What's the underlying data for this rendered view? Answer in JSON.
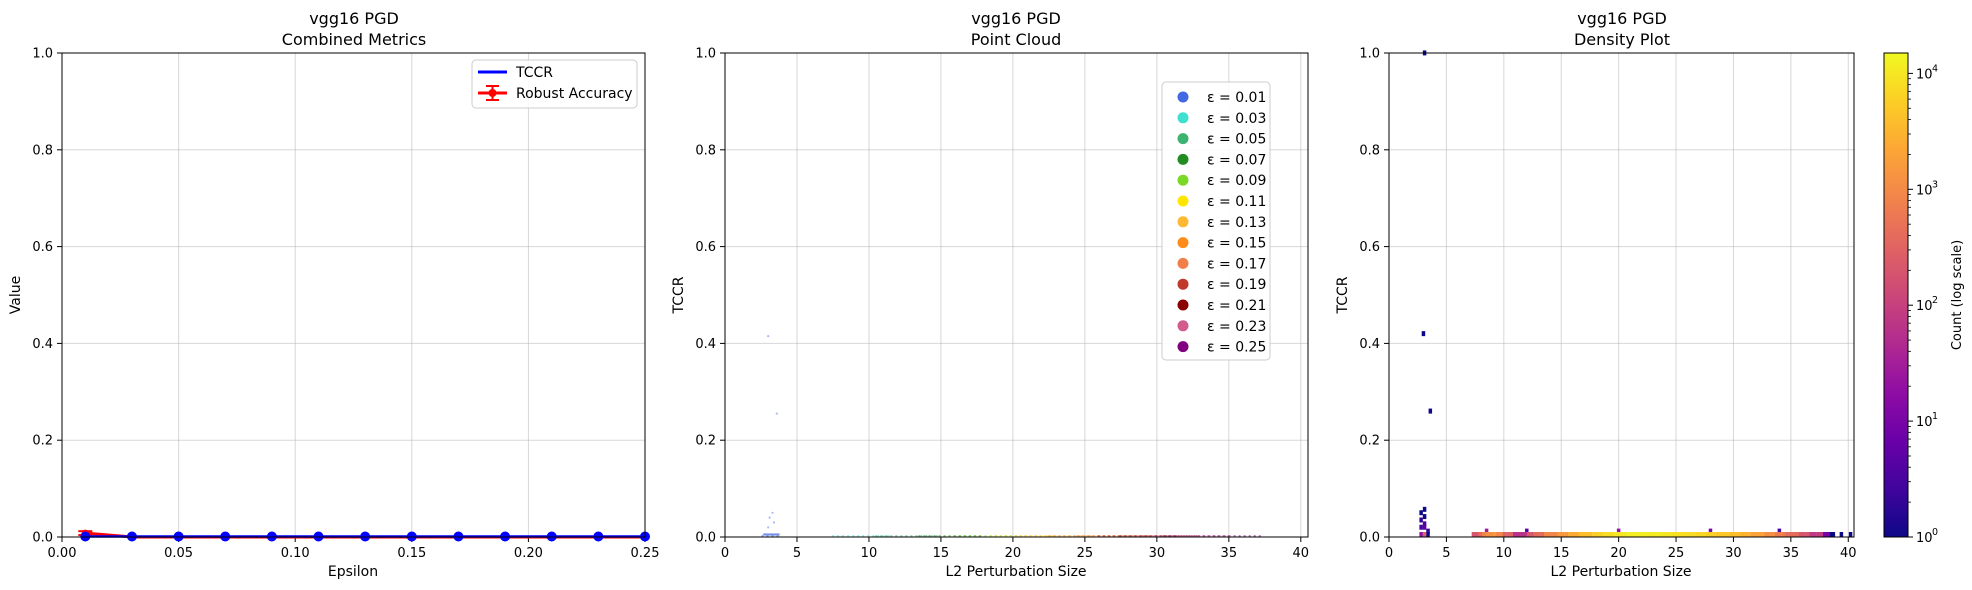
{
  "chart_data": [
    {
      "type": "line",
      "title": "vgg16 PGD",
      "subtitle": "Combined Metrics",
      "xlabel": "Epsilon",
      "ylabel": "Value",
      "xlim": [
        0.0,
        0.25
      ],
      "ylim": [
        0.0,
        1.0
      ],
      "x_ticks": [
        "0.00",
        "0.05",
        "0.10",
        "0.15",
        "0.20",
        "0.25"
      ],
      "y_ticks": [
        "0.0",
        "0.2",
        "0.4",
        "0.6",
        "0.8",
        "1.0"
      ],
      "grid": true,
      "legend_position": "top-right",
      "series": [
        {
          "name": "TCCR",
          "color": "#0000ff",
          "marker": "circle",
          "x": [
            0.01,
            0.03,
            0.05,
            0.07,
            0.09,
            0.11,
            0.13,
            0.15,
            0.17,
            0.19,
            0.21,
            0.23,
            0.25
          ],
          "y": [
            0.001,
            0.001,
            0.001,
            0.001,
            0.001,
            0.001,
            0.001,
            0.001,
            0.001,
            0.001,
            0.001,
            0.001,
            0.001
          ]
        },
        {
          "name": "Robust Accuracy",
          "color": "#ff0000",
          "marker": "diamond",
          "error_bars": true,
          "x": [
            0.01,
            0.03,
            0.05,
            0.07,
            0.09,
            0.11,
            0.13,
            0.15,
            0.17,
            0.19,
            0.21,
            0.23,
            0.25
          ],
          "y": [
            0.008,
            0.0,
            0.0,
            0.0,
            0.0,
            0.0,
            0.0,
            0.0,
            0.0,
            0.0,
            0.0,
            0.0,
            0.0
          ],
          "err": [
            0.004,
            0,
            0,
            0,
            0,
            0,
            0,
            0,
            0,
            0,
            0,
            0,
            0
          ]
        }
      ]
    },
    {
      "type": "scatter",
      "title": "vgg16 PGD",
      "subtitle": "Point Cloud",
      "xlabel": "L2 Perturbation Size",
      "ylabel": "TCCR",
      "xlim": [
        0,
        40.5
      ],
      "ylim": [
        0.0,
        1.0
      ],
      "x_ticks": [
        "0",
        "5",
        "10",
        "15",
        "20",
        "25",
        "30",
        "35",
        "40"
      ],
      "y_ticks": [
        "0.0",
        "0.2",
        "0.4",
        "0.6",
        "0.8",
        "1.0"
      ],
      "grid": true,
      "legend_position": "top-right",
      "series": [
        {
          "name": "ε = 0.01",
          "color": "#4169e1",
          "x_range": [
            2.6,
            3.8
          ],
          "outliers": [
            [
              3.0,
              0.415
            ],
            [
              3.6,
              0.255
            ],
            [
              3.3,
              0.05
            ],
            [
              3.1,
              0.04
            ],
            [
              3.4,
              0.03
            ],
            [
              3.0,
              0.02
            ]
          ]
        },
        {
          "name": "ε = 0.03",
          "color": "#40e0d0",
          "x_range": [
            7.5,
            11.5
          ]
        },
        {
          "name": "ε = 0.05",
          "color": "#3cb371",
          "x_range": [
            10.5,
            15.0
          ]
        },
        {
          "name": "ε = 0.07",
          "color": "#228b22",
          "x_range": [
            13.5,
            18.0
          ]
        },
        {
          "name": "ε = 0.09",
          "color": "#7cd827",
          "x_range": [
            16.0,
            20.5
          ]
        },
        {
          "name": "ε = 0.11",
          "color": "#ffe600",
          "x_range": [
            18.5,
            23.0
          ]
        },
        {
          "name": "ε = 0.13",
          "color": "#ffb833",
          "x_range": [
            20.5,
            25.5
          ]
        },
        {
          "name": "ε = 0.15",
          "color": "#ff8c1a",
          "x_range": [
            22.5,
            27.5
          ]
        },
        {
          "name": "ε = 0.17",
          "color": "#f08048",
          "x_range": [
            24.5,
            29.5
          ]
        },
        {
          "name": "ε = 0.19",
          "color": "#c0392b",
          "x_range": [
            26.0,
            31.5
          ]
        },
        {
          "name": "ε = 0.21",
          "color": "#8b0000",
          "x_range": [
            27.5,
            33.0
          ]
        },
        {
          "name": "ε = 0.23",
          "color": "#d05b8c",
          "x_range": [
            29.0,
            35.0
          ]
        },
        {
          "name": "ε = 0.25",
          "color": "#800080",
          "x_range": [
            30.5,
            37.5
          ]
        }
      ]
    },
    {
      "type": "heatmap",
      "title": "vgg16 PGD",
      "subtitle": "Density Plot",
      "xlabel": "L2 Perturbation Size",
      "ylabel": "TCCR",
      "xlim": [
        0,
        40.5
      ],
      "ylim": [
        0.0,
        1.0
      ],
      "x_ticks": [
        "0",
        "5",
        "10",
        "15",
        "20",
        "25",
        "30",
        "35",
        "40"
      ],
      "y_ticks": [
        "0.0",
        "0.2",
        "0.4",
        "0.6",
        "0.8",
        "1.0"
      ],
      "grid": true,
      "colormap": "plasma",
      "colorbar": {
        "label": "Count (log scale)",
        "scale": "log",
        "range": [
          1,
          15000
        ],
        "ticks": [
          {
            "base": "10",
            "exp": "0",
            "value": 1
          },
          {
            "base": "10",
            "exp": "1",
            "value": 10
          },
          {
            "base": "10",
            "exp": "2",
            "value": 100
          },
          {
            "base": "10",
            "exp": "3",
            "value": 1000
          },
          {
            "base": "10",
            "exp": "4",
            "value": 10000
          }
        ]
      },
      "cells": [
        [
          3.0,
          0.415,
          1
        ],
        [
          3.6,
          0.255,
          1
        ],
        [
          3.1,
          0.995,
          1
        ],
        [
          2.8,
          0.045,
          1
        ],
        [
          3.1,
          0.052,
          1
        ],
        [
          3.1,
          0.037,
          1
        ],
        [
          2.8,
          0.03,
          2
        ],
        [
          3.1,
          0.022,
          3
        ],
        [
          2.8,
          0.015,
          3
        ],
        [
          3.1,
          0.015,
          5
        ],
        [
          3.4,
          0.007,
          2
        ],
        [
          2.8,
          0.0,
          20
        ],
        [
          3.1,
          0.0,
          300
        ],
        [
          3.4,
          0.0,
          1
        ],
        [
          7.5,
          0.0,
          200
        ],
        [
          7.8,
          0.0,
          400
        ],
        [
          8.2,
          0.0,
          800
        ],
        [
          8.5,
          0.0,
          1200
        ],
        [
          9.0,
          0.0,
          1500
        ],
        [
          9.5,
          0.0,
          900
        ],
        [
          10.0,
          0.0,
          300
        ],
        [
          11.5,
          0.0,
          60
        ],
        [
          12.0,
          0.0,
          200
        ],
        [
          13.0,
          0.0,
          400
        ],
        [
          14.0,
          0.0,
          900
        ],
        [
          15.0,
          0.0,
          1500
        ],
        [
          16.0,
          0.0,
          2500
        ],
        [
          17.0,
          0.0,
          4000
        ],
        [
          18.0,
          0.0,
          6000
        ],
        [
          19.0,
          0.0,
          8000
        ],
        [
          20.0,
          0.0,
          10000
        ],
        [
          21.0,
          0.0,
          12000
        ],
        [
          22.0,
          0.0,
          12000
        ],
        [
          23.0,
          0.0,
          11000
        ],
        [
          24.0,
          0.0,
          10000
        ],
        [
          25.0,
          0.0,
          9000
        ],
        [
          26.0,
          0.0,
          8000
        ],
        [
          27.0,
          0.0,
          7000
        ],
        [
          28.0,
          0.0,
          6000
        ],
        [
          29.0,
          0.0,
          5000
        ],
        [
          30.0,
          0.0,
          4000
        ],
        [
          31.0,
          0.0,
          3000
        ],
        [
          32.0,
          0.0,
          2000
        ],
        [
          33.0,
          0.0,
          1200
        ],
        [
          34.0,
          0.0,
          700
        ],
        [
          35.0,
          0.0,
          400
        ],
        [
          36.0,
          0.0,
          200
        ],
        [
          37.0,
          0.0,
          80
        ],
        [
          38.0,
          0.0,
          10
        ],
        [
          38.7,
          0.0,
          1
        ],
        [
          39.4,
          0.0,
          1
        ],
        [
          40.2,
          0.0,
          1
        ],
        [
          8.5,
          0.007,
          30
        ],
        [
          12.0,
          0.007,
          5
        ],
        [
          20.0,
          0.007,
          20
        ],
        [
          28.0,
          0.007,
          10
        ],
        [
          34.0,
          0.007,
          3
        ]
      ]
    }
  ]
}
